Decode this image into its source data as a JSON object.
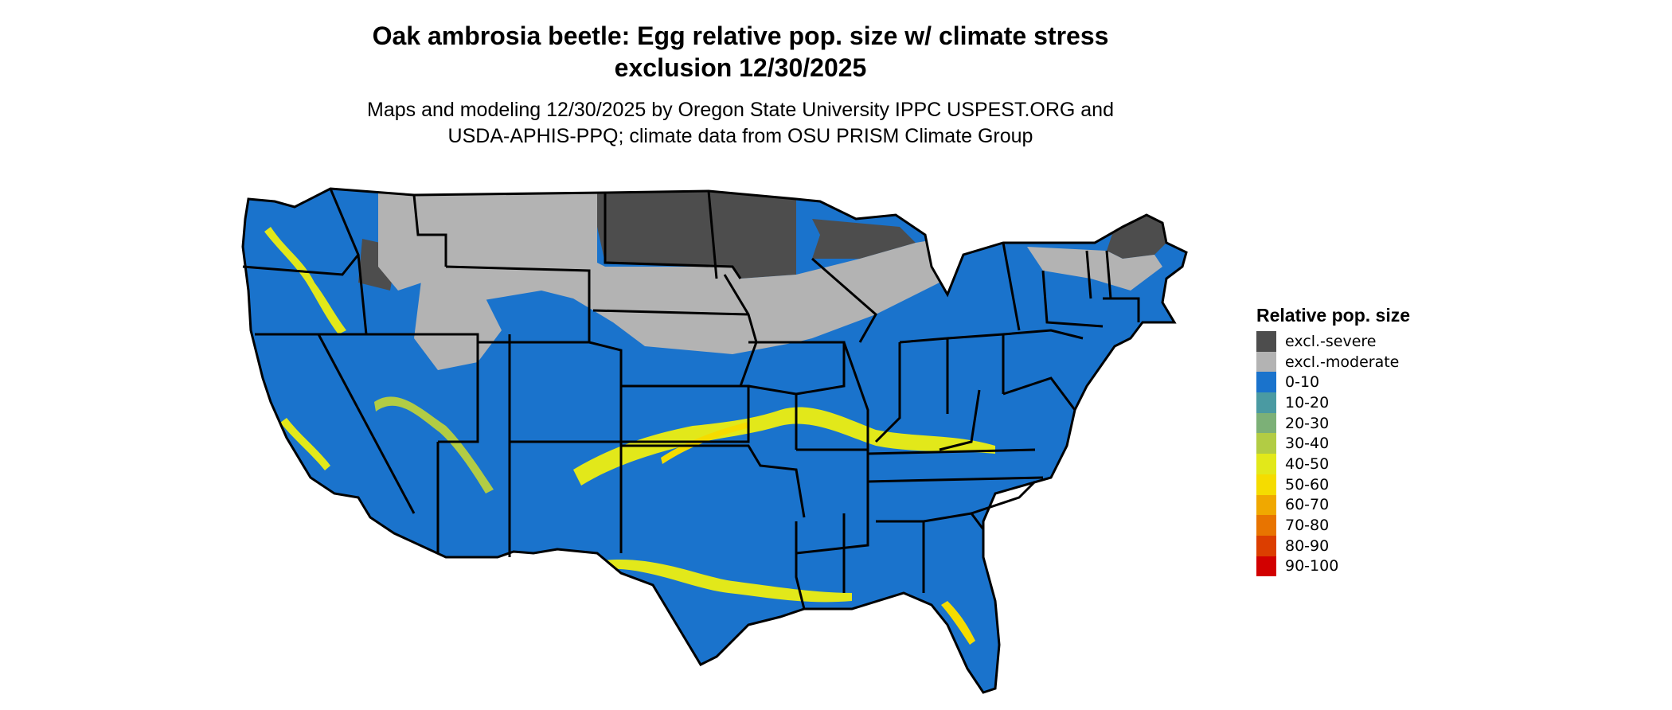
{
  "title": {
    "line1": "Oak ambrosia beetle: Egg relative pop. size w/ climate stress",
    "line2": "exclusion 12/30/2025"
  },
  "subtitle": {
    "line1": "Maps and modeling 12/30/2025 by Oregon State University IPPC USPEST.ORG and",
    "line2": "USDA-APHIS-PPQ; climate data from OSU PRISM Climate Group"
  },
  "legend": {
    "title": "Relative pop. size",
    "items": [
      {
        "label": "excl.-severe",
        "color": "#4d4d4d"
      },
      {
        "label": "excl.-moderate",
        "color": "#b3b3b3"
      },
      {
        "label": "0-10",
        "color": "#1a73cc"
      },
      {
        "label": "10-20",
        "color": "#4a9aa2"
      },
      {
        "label": "20-30",
        "color": "#7cb077"
      },
      {
        "label": "30-40",
        "color": "#b2cc44"
      },
      {
        "label": "40-50",
        "color": "#e2e81a"
      },
      {
        "label": "50-60",
        "color": "#f5dc00"
      },
      {
        "label": "60-70",
        "color": "#f0a800"
      },
      {
        "label": "70-80",
        "color": "#e87400"
      },
      {
        "label": "80-90",
        "color": "#dc3e00"
      },
      {
        "label": "90-100",
        "color": "#d20000"
      }
    ]
  }
}
